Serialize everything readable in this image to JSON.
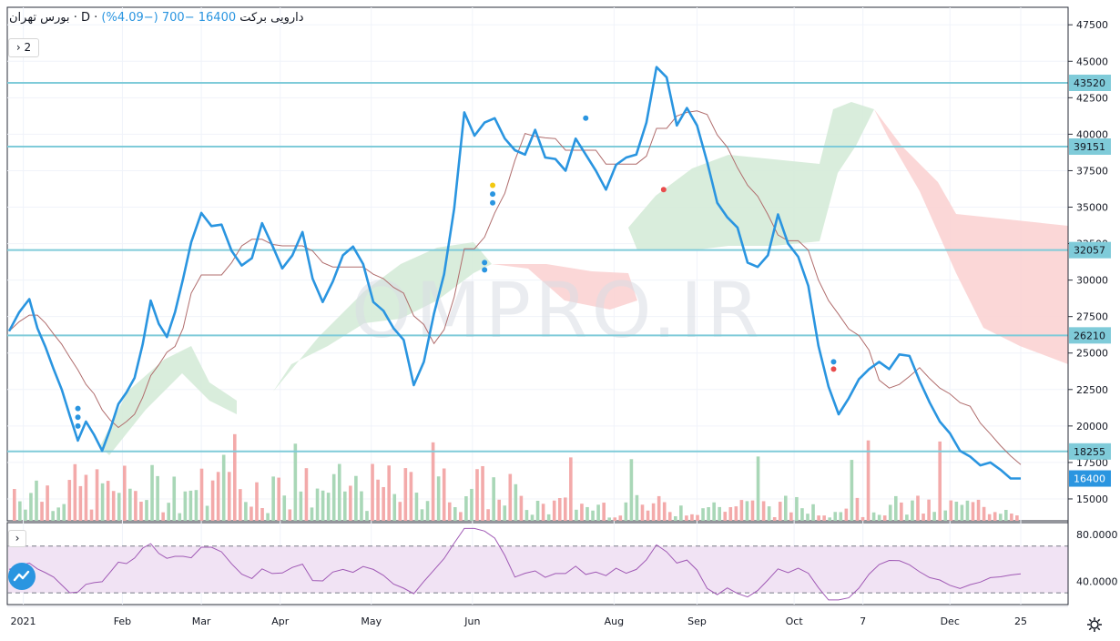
{
  "header": {
    "title": "بورس تهران · D · دارویی برکت",
    "price": "16400",
    "change": "−700 (−4.09%)"
  },
  "controls": {
    "collapse_label": "2"
  },
  "watermark": "OMPRO.IR",
  "colors": {
    "price_line": "#2a95e0",
    "baseline": "#b06d6d",
    "cloud_up": "#d5ebd8",
    "cloud_down": "#fbd3d3",
    "hline": "#7fcbd9",
    "vol_up": "#a9d7b7",
    "vol_down": "#f3aaaa",
    "rsi": "#a05ab5",
    "rsi_band": "#f1e3f4"
  },
  "chart_data": [
    {
      "type": "line",
      "title": "",
      "xlabel": "",
      "ylabel": "",
      "x_tick_labels": [
        "2021",
        "Feb",
        "Mar",
        "Apr",
        "May",
        "Jun",
        "Aug",
        "Sep",
        "Oct",
        "7",
        "Dec",
        "25"
      ],
      "y_ticks": [
        15000,
        17500,
        20000,
        22500,
        25000,
        27500,
        30000,
        32500,
        35000,
        37500,
        40000,
        42500,
        45000,
        47500
      ],
      "ylim": [
        13500,
        48700
      ],
      "grid": true,
      "horizontal_levels": [
        43520,
        39151,
        32057,
        26210,
        18255
      ],
      "last_price_label": "16400",
      "series": [
        {
          "role": "price",
          "x": [
            0,
            0.01,
            0.02,
            0.028,
            0.036,
            0.044,
            0.052,
            0.06,
            0.068,
            0.076,
            0.084,
            0.092,
            0.1,
            0.108,
            0.116,
            0.124,
            0.132,
            0.14,
            0.148,
            0.156,
            0.164,
            0.172,
            0.18,
            0.19,
            0.2,
            0.21,
            0.22,
            0.23,
            0.24,
            0.25,
            0.26,
            0.27,
            0.28,
            0.29,
            0.3,
            0.31,
            0.32,
            0.33,
            0.34,
            0.35,
            0.36,
            0.37,
            0.38,
            0.39,
            0.4,
            0.41,
            0.42,
            0.43,
            0.44,
            0.45,
            0.46,
            0.47,
            0.48,
            0.49,
            0.5,
            0.51,
            0.52,
            0.53,
            0.54,
            0.55,
            0.56,
            0.57,
            0.58,
            0.59,
            0.6,
            0.61,
            0.62,
            0.63,
            0.64,
            0.65,
            0.66,
            0.67,
            0.68,
            0.69,
            0.7,
            0.71,
            0.72,
            0.73,
            0.74,
            0.75,
            0.76,
            0.77,
            0.78,
            0.79,
            0.8,
            0.81,
            0.82,
            0.83,
            0.84,
            0.85,
            0.86,
            0.87,
            0.88,
            0.89,
            0.9,
            0.91,
            0.92,
            0.93,
            0.94,
            0.95,
            0.96,
            0.97,
            0.98,
            0.99,
            1.0
          ],
          "values": [
            26500,
            27800,
            28700,
            26700,
            25400,
            23900,
            22500,
            20700,
            19000,
            20300,
            19400,
            18300,
            19800,
            21500,
            22300,
            23300,
            25600,
            28600,
            27000,
            26100,
            27800,
            30100,
            32600,
            34600,
            33700,
            33800,
            32000,
            31000,
            31500,
            33900,
            32400,
            30800,
            31700,
            33300,
            30100,
            28500,
            29900,
            31700,
            32300,
            31100,
            28500,
            27900,
            26700,
            25900,
            22800,
            24400,
            27700,
            30400,
            34900,
            41500,
            39900,
            40800,
            41100,
            39700,
            38900,
            38600,
            40300,
            38400,
            38300,
            37500,
            39700,
            38600,
            37500,
            36200,
            37900,
            38400,
            38600,
            40800,
            44600,
            43900,
            40600,
            41800,
            40600,
            38100,
            35300,
            34300,
            33600,
            31200,
            30900,
            31700,
            34500,
            32500,
            31600,
            29600,
            25500,
            22700,
            20800,
            21900,
            23200,
            23900,
            24400,
            23900,
            24900,
            24800,
            23100,
            21600,
            20300,
            19500,
            18300,
            17900,
            17300,
            17500,
            17000,
            16400,
            16400
          ],
          "values_note": ""
        }
      ],
      "volume_pane": {
        "type": "bar",
        "ylim": [
          0,
          1
        ]
      },
      "rsi_pane": {
        "type": "line",
        "y_tick_labels": [
          "80.0000",
          "40.0000"
        ],
        "ylim": [
          20,
          90
        ],
        "band": [
          30,
          70
        ]
      }
    }
  ]
}
